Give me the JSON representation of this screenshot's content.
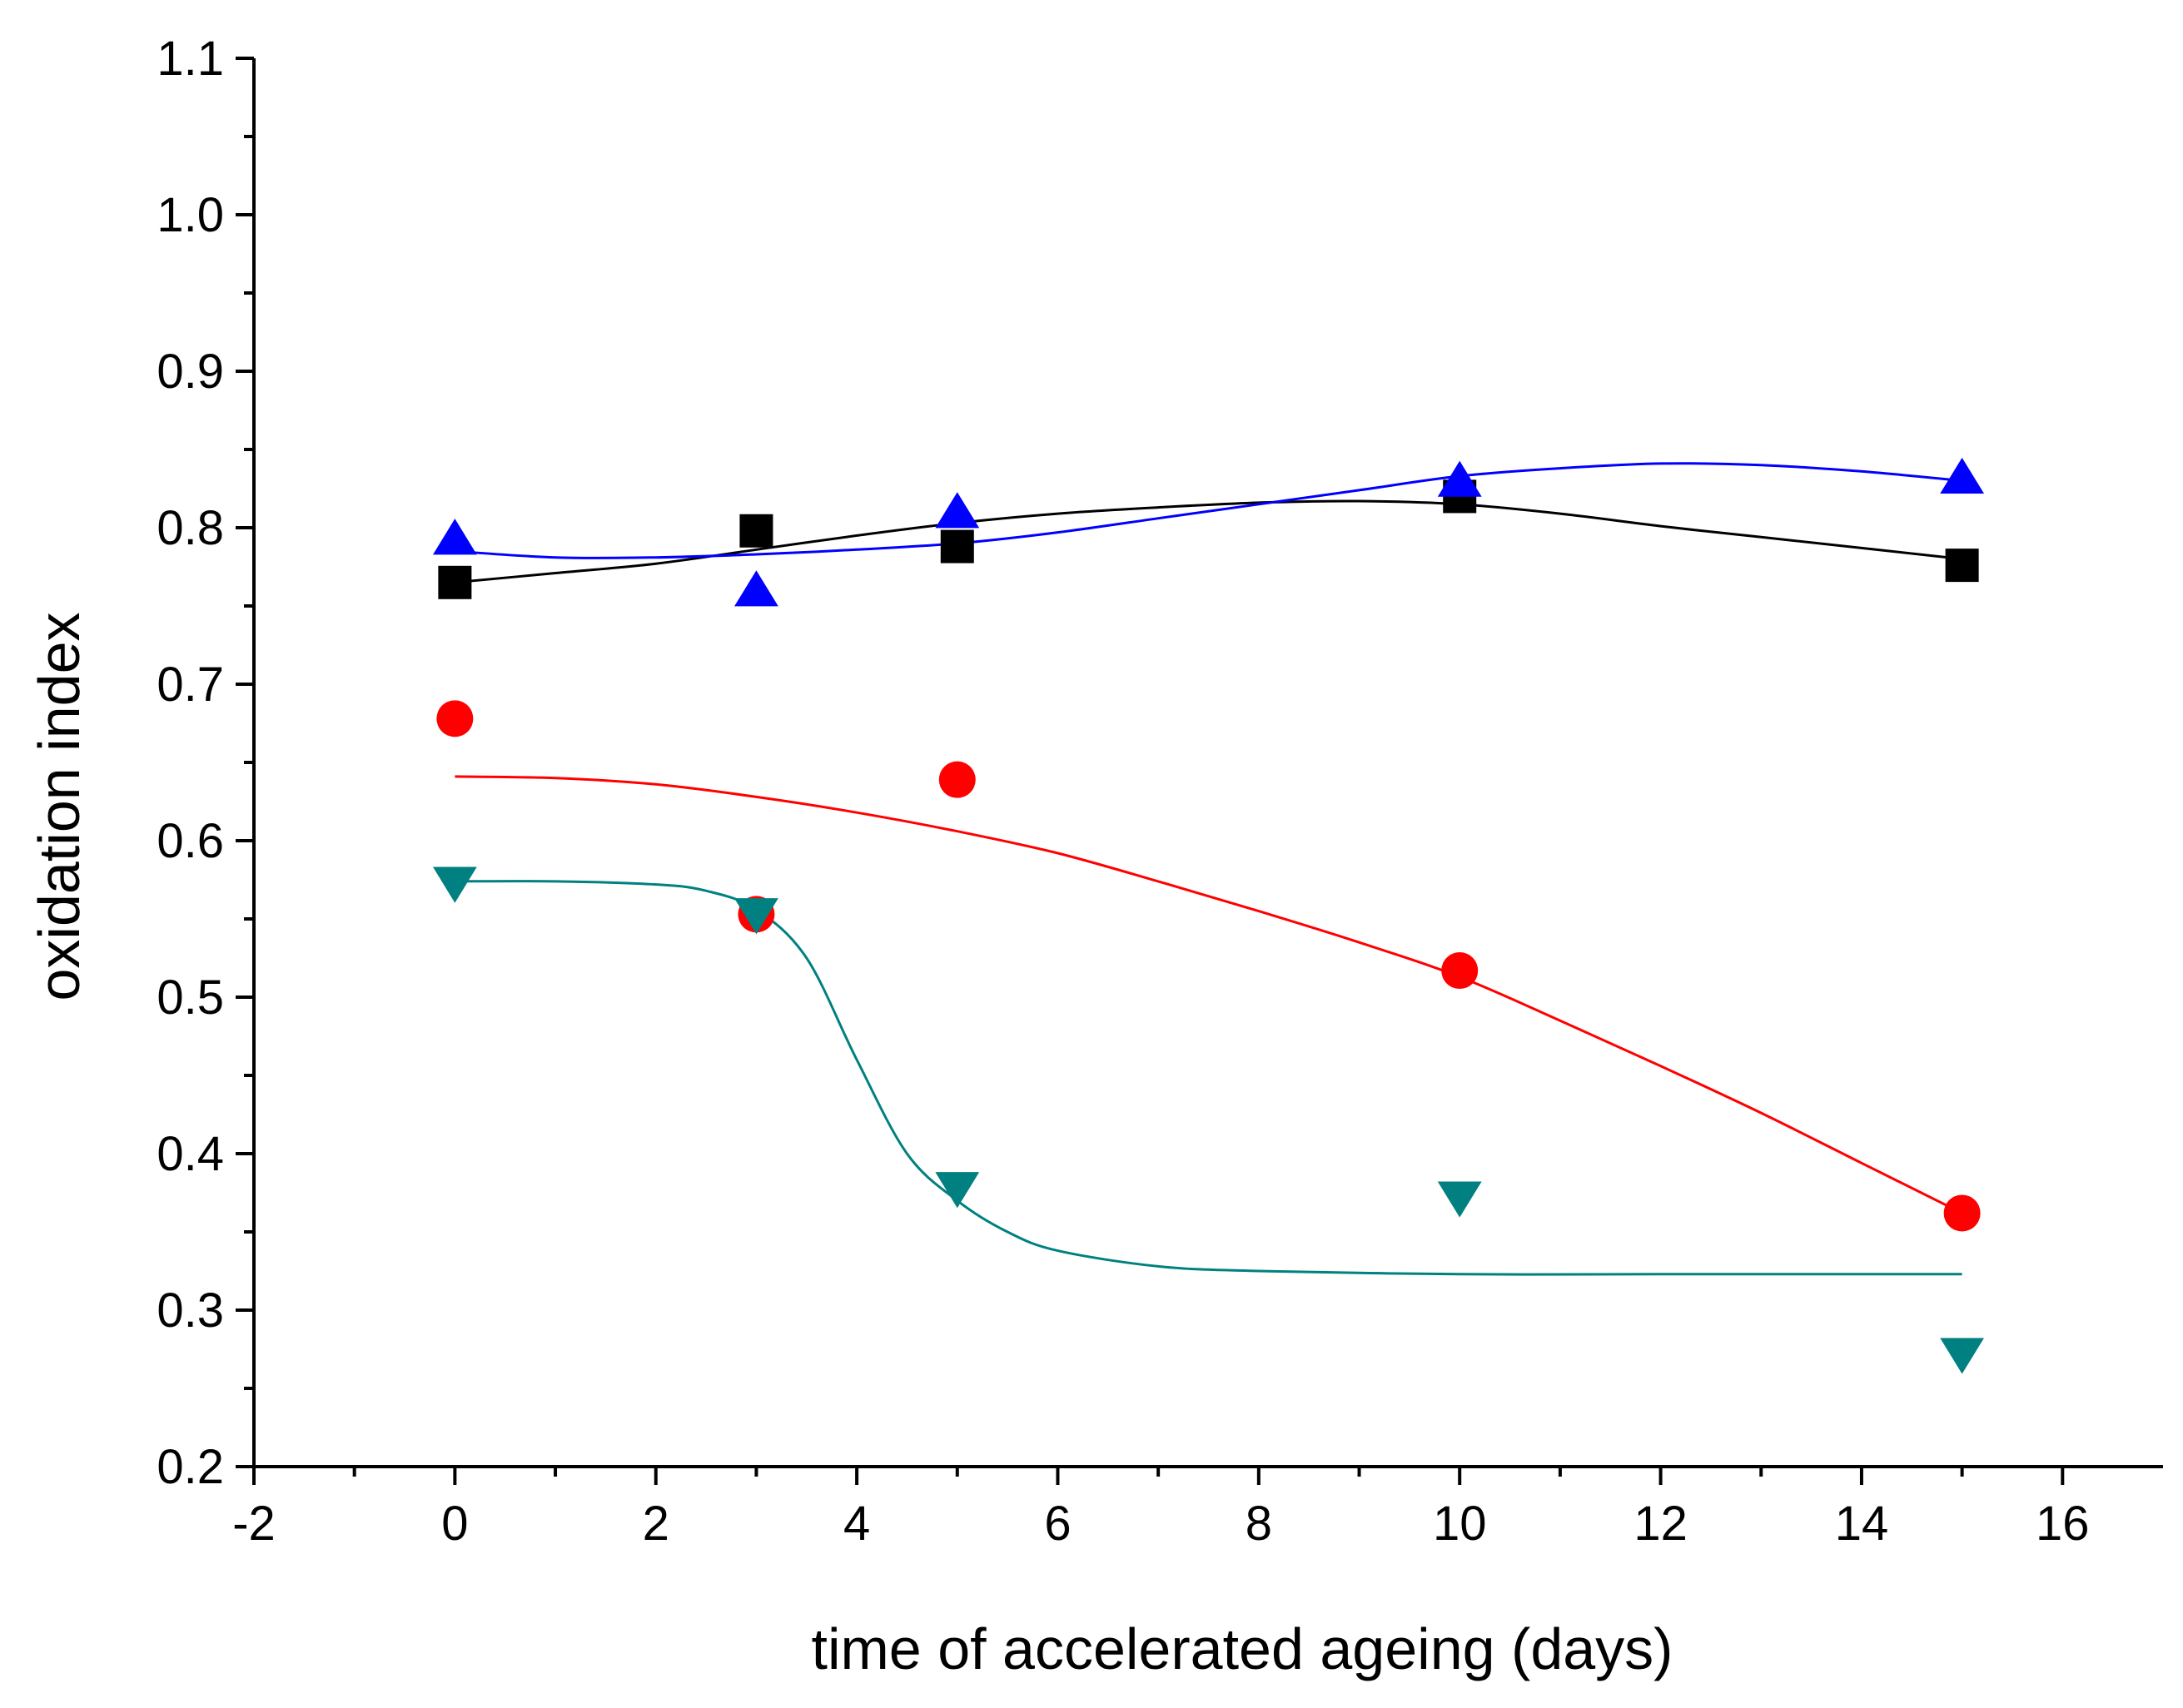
{
  "chart_data": {
    "type": "scatter",
    "title": "",
    "xlabel": "time of accelerated ageing (days)",
    "ylabel": "oxidation index",
    "xlim": [
      -2,
      17
    ],
    "ylim": [
      0.2,
      1.1
    ],
    "grid": false,
    "legend": "none",
    "x_major_ticks": [
      -2,
      0,
      2,
      4,
      6,
      8,
      10,
      12,
      14,
      16
    ],
    "x_tick_labels": [
      "-2",
      "0",
      "2",
      "4",
      "6",
      "8",
      "10",
      "12",
      "14",
      "16"
    ],
    "y_major_ticks": [
      0.2,
      0.3,
      0.4,
      0.5,
      0.6,
      0.7,
      0.8,
      0.9,
      1.0,
      1.1
    ],
    "y_tick_labels": [
      "0.2",
      "0.3",
      "0.4",
      "0.5",
      "0.6",
      "0.7",
      "0.8",
      "0.9",
      "1.0",
      "1.1"
    ],
    "series": [
      {
        "name": "black squares",
        "marker": "square",
        "color": "#000000",
        "x": [
          0,
          3,
          5,
          10,
          15
        ],
        "y": [
          0.765,
          0.798,
          0.788,
          0.82,
          0.776
        ],
        "fit": {
          "x": [
            0,
            1,
            2,
            3,
            4,
            5,
            6,
            7,
            8,
            9,
            10,
            11,
            12,
            13,
            14,
            15
          ],
          "y": [
            0.765,
            0.771,
            0.777,
            0.786,
            0.795,
            0.803,
            0.809,
            0.813,
            0.816,
            0.817,
            0.815,
            0.809,
            0.801,
            0.794,
            0.787,
            0.78
          ]
        }
      },
      {
        "name": "red circles",
        "marker": "circle",
        "color": "#ff0000",
        "x": [
          0,
          3,
          5,
          10,
          15
        ],
        "y": [
          0.678,
          0.553,
          0.639,
          0.517,
          0.362
        ],
        "fit": {
          "x": [
            0,
            1,
            2,
            3,
            4,
            5,
            6,
            7,
            8,
            9,
            10,
            11,
            12,
            13,
            14,
            15
          ],
          "y": [
            0.641,
            0.64,
            0.636,
            0.628,
            0.618,
            0.606,
            0.592,
            0.574,
            0.555,
            0.535,
            0.513,
            0.485,
            0.456,
            0.426,
            0.394,
            0.362
          ]
        }
      },
      {
        "name": "blue triangles",
        "marker": "triangle-up",
        "color": "#0000ff",
        "x": [
          0,
          3,
          5,
          10,
          15
        ],
        "y": [
          0.793,
          0.76,
          0.81,
          0.83,
          0.832
        ],
        "fit": {
          "x": [
            0,
            1,
            2,
            3,
            4,
            5,
            6,
            7,
            8,
            9,
            10,
            11,
            12,
            13,
            14,
            15
          ],
          "y": [
            0.785,
            0.781,
            0.781,
            0.783,
            0.786,
            0.79,
            0.797,
            0.806,
            0.815,
            0.824,
            0.833,
            0.838,
            0.841,
            0.84,
            0.836,
            0.83
          ]
        }
      },
      {
        "name": "teal triangles",
        "marker": "triangle-down",
        "color": "#008080",
        "x": [
          0,
          3,
          5,
          10,
          15
        ],
        "y": [
          0.573,
          0.553,
          0.378,
          0.372,
          0.272
        ],
        "fit": {
          "x": [
            0,
            1,
            2,
            2.5,
            3,
            3.5,
            4,
            4.5,
            5,
            5.5,
            6,
            7,
            8,
            10,
            12,
            15
          ],
          "y": [
            0.574,
            0.574,
            0.572,
            0.568,
            0.556,
            0.525,
            0.46,
            0.4,
            0.37,
            0.35,
            0.338,
            0.328,
            0.325,
            0.323,
            0.323,
            0.323
          ]
        }
      }
    ]
  }
}
